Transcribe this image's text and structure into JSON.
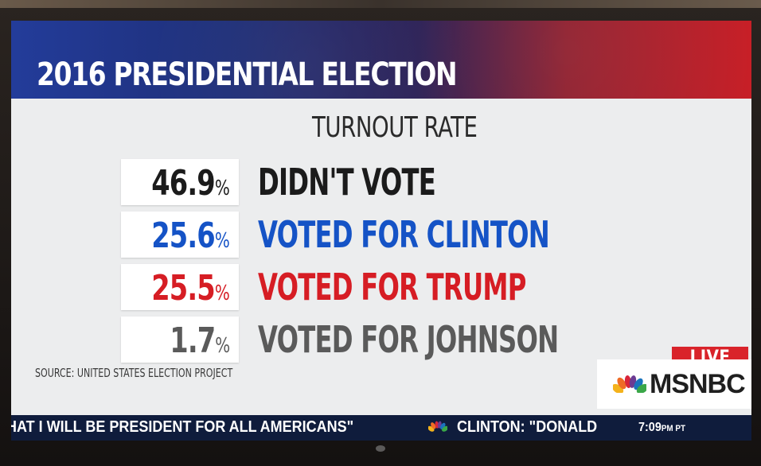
{
  "header": {
    "title": "2016 PRESIDENTIAL ELECTION"
  },
  "graphic": {
    "subtitle": "TURNOUT RATE",
    "rows": [
      {
        "value": "46.9",
        "unit": "%",
        "label": "DIDN'T VOTE",
        "color": "#1b1b1b"
      },
      {
        "value": "25.6",
        "unit": "%",
        "label": "VOTED FOR CLINTON",
        "color": "#1553c6"
      },
      {
        "value": "25.5",
        "unit": "%",
        "label": "VOTED FOR TRUMP",
        "color": "#d61d24"
      },
      {
        "value": "1.7",
        "unit": "%",
        "label": "VOTED FOR JOHNSON",
        "color": "#5a5a5a"
      }
    ],
    "source": "SOURCE: UNITED STATES ELECTION PROJECT"
  },
  "branding": {
    "live_label": "LIVE",
    "network": "MSNBC"
  },
  "ticker": {
    "text_left": "HAT I WILL BE PRESIDENT FOR ALL AMERICANS\"",
    "text_right": "CLINTON: \"DONALD",
    "time": "7:09",
    "time_suffix": "PM PT"
  },
  "colors": {
    "banner_blue": "#233c9a",
    "banner_red": "#c71d25",
    "live_red": "#d9232a",
    "ticker_bg": "#0f1c3c"
  },
  "icons": {
    "network_logo": "peacock-icon"
  }
}
